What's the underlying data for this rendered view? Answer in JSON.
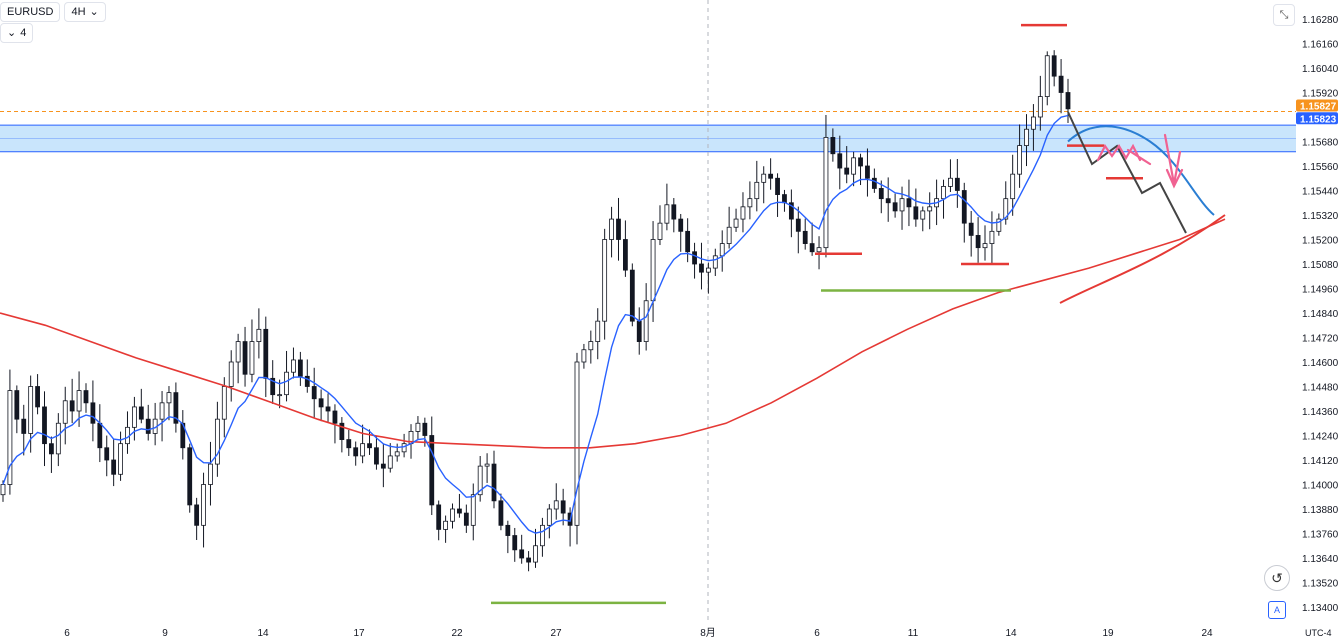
{
  "toolbar": {
    "symbol": "EURUSD",
    "interval": "4H",
    "interval_chevron": "⌄",
    "indicator_toggle": "⌄",
    "indicator_count": "4"
  },
  "chart_data": {
    "type": "candlestick",
    "symbol": "EURUSD",
    "interval": "4H",
    "y_axis": {
      "range": [
        1.1334,
        1.1634
      ],
      "ticks": [
        "1.16280",
        "1.16160",
        "1.16040",
        "1.15920",
        "1.15680",
        "1.15560",
        "1.15440",
        "1.15320",
        "1.15200",
        "1.15080",
        "1.14960",
        "1.14840",
        "1.14720",
        "1.14600",
        "1.14480",
        "1.14360",
        "1.14240",
        "1.14120",
        "1.14000",
        "1.13880",
        "1.13760",
        "1.13640",
        "1.13520",
        "1.13400"
      ],
      "price_badges": [
        {
          "label": "1.15827",
          "value": 1.15827,
          "color": "#f7931e"
        },
        {
          "label": "1.15823",
          "value": 1.15823,
          "color": "#2962ff"
        }
      ]
    },
    "x_axis": {
      "ticks": [
        "6",
        "9",
        "14",
        "17",
        "22",
        "27",
        "8月",
        "6",
        "11",
        "14",
        "19",
        "24"
      ],
      "timezone": "UTC-4"
    },
    "series": [
      {
        "kind": "moving-average",
        "color": "#2962ff"
      },
      {
        "kind": "moving-average",
        "color": "#e53935"
      }
    ],
    "resistance_zone": [
      1.1563,
      1.1576
    ],
    "drawings": {
      "red_levels": [
        {
          "value": 1.1625
        },
        {
          "value": 1.1566
        },
        {
          "value": 1.155
        },
        {
          "value": 1.1513
        },
        {
          "value": 1.1508
        }
      ],
      "green_levels": [
        {
          "value": 1.1495
        },
        {
          "value": 1.1342
        }
      ]
    }
  },
  "ui": {
    "corner_button_icon": "collapse-icon",
    "reset_icon": "reset-icon",
    "auto_scale_label": "A"
  }
}
